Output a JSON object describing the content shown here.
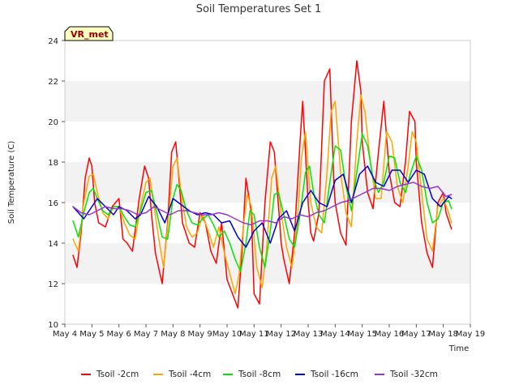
{
  "chart_data": {
    "type": "line",
    "title": "Soil Temperatures Set 1",
    "xlabel": "Time",
    "ylabel": "Soil Temperature (C)",
    "ylim": [
      10,
      24
    ],
    "yticks": [
      10,
      12,
      14,
      16,
      18,
      20,
      22,
      24
    ],
    "xlim": [
      4,
      19
    ],
    "xticks": [
      4,
      5,
      6,
      7,
      8,
      9,
      10,
      11,
      12,
      13,
      14,
      15,
      16,
      17,
      18,
      19
    ],
    "xtick_labels": [
      "May 4",
      "May 5",
      "May 6",
      "May 7",
      "May 8",
      "May 9",
      "May 10",
      "May 11",
      "May 12",
      "May 13",
      "May 14",
      "May 15",
      "May 16",
      "May 17",
      "May 18",
      "May 19"
    ],
    "grid": "horizontal bands",
    "legend_position": "bottom",
    "annotation": "VR_met",
    "series": [
      {
        "name": "Tsoil -2cm",
        "color": "#ff0000",
        "x": [
          4.3,
          4.45,
          4.6,
          4.75,
          4.9,
          5.0,
          5.1,
          5.25,
          5.5,
          5.75,
          6.0,
          6.15,
          6.3,
          6.5,
          6.75,
          6.95,
          7.1,
          7.2,
          7.35,
          7.6,
          7.8,
          7.95,
          8.1,
          8.2,
          8.35,
          8.6,
          8.8,
          9.0,
          9.2,
          9.4,
          9.6,
          9.8,
          10.0,
          10.2,
          10.4,
          10.55,
          10.7,
          10.9,
          11.0,
          11.2,
          11.4,
          11.6,
          11.75,
          11.95,
          12.0,
          12.1,
          12.3,
          12.5,
          12.7,
          12.8,
          13.0,
          13.1,
          13.2,
          13.4,
          13.6,
          13.8,
          13.95,
          14.0,
          14.2,
          14.4,
          14.6,
          14.8,
          14.95,
          15.0,
          15.2,
          15.4,
          15.6,
          15.8,
          16.0,
          16.2,
          16.4,
          16.6,
          16.75,
          16.95,
          17.0,
          17.2,
          17.4,
          17.6,
          17.8,
          18.0,
          18.1,
          18.3
        ],
        "y": [
          13.4,
          12.8,
          14.5,
          17.2,
          18.2,
          17.8,
          16.0,
          15.0,
          14.8,
          15.8,
          16.2,
          14.2,
          14.0,
          13.6,
          16.2,
          17.8,
          17.2,
          15.5,
          13.5,
          12.0,
          15.0,
          18.5,
          19.0,
          17.5,
          15.0,
          14.0,
          13.8,
          15.5,
          15.0,
          13.6,
          13.0,
          15.0,
          12.2,
          11.5,
          10.8,
          13.5,
          17.2,
          15.5,
          11.5,
          11.0,
          16.0,
          19.0,
          18.5,
          15.0,
          14.0,
          13.2,
          12.0,
          14.5,
          19.0,
          21.0,
          16.0,
          14.5,
          14.1,
          15.5,
          22.0,
          22.6,
          17.0,
          16.0,
          14.5,
          13.9,
          20.0,
          23.0,
          21.5,
          19.0,
          16.5,
          15.7,
          18.5,
          21.0,
          17.5,
          16.0,
          15.8,
          18.0,
          20.5,
          20.0,
          18.0,
          15.0,
          13.5,
          12.8,
          16.0,
          16.5,
          15.5,
          14.7
        ]
      },
      {
        "name": "Tsoil -4cm",
        "color": "#ffa500",
        "x": [
          4.3,
          4.5,
          4.7,
          4.9,
          5.05,
          5.2,
          5.4,
          5.6,
          5.8,
          6.0,
          6.2,
          6.4,
          6.6,
          6.8,
          7.0,
          7.15,
          7.3,
          7.5,
          7.65,
          7.8,
          8.0,
          8.15,
          8.3,
          8.5,
          8.7,
          8.9,
          9.1,
          9.3,
          9.5,
          9.7,
          9.9,
          10.1,
          10.3,
          10.45,
          10.6,
          10.75,
          10.9,
          11.1,
          11.3,
          11.45,
          11.65,
          11.8,
          12.0,
          12.2,
          12.4,
          12.6,
          12.75,
          12.9,
          13.1,
          13.3,
          13.5,
          13.7,
          13.85,
          14.0,
          14.2,
          14.4,
          14.6,
          14.8,
          14.95,
          15.1,
          15.3,
          15.5,
          15.7,
          15.9,
          16.1,
          16.3,
          16.5,
          16.7,
          16.85,
          17.0,
          17.2,
          17.4,
          17.6,
          17.8,
          18.0,
          18.2,
          18.3
        ],
        "y": [
          14.2,
          13.6,
          16.0,
          17.3,
          17.4,
          16.5,
          15.5,
          15.2,
          15.8,
          15.8,
          15.0,
          14.4,
          14.2,
          15.8,
          17.0,
          17.2,
          15.8,
          14.0,
          12.8,
          14.8,
          17.8,
          18.2,
          16.5,
          14.8,
          14.3,
          14.5,
          15.4,
          14.6,
          13.8,
          14.8,
          13.5,
          12.5,
          11.5,
          12.5,
          14.8,
          16.4,
          15.8,
          12.8,
          11.8,
          13.5,
          17.2,
          17.8,
          15.5,
          13.8,
          12.8,
          15.0,
          18.2,
          19.5,
          16.0,
          14.8,
          14.5,
          17.5,
          20.5,
          21.0,
          17.5,
          15.5,
          14.8,
          19.0,
          21.3,
          20.5,
          18.0,
          16.2,
          16.2,
          19.5,
          19.0,
          16.8,
          16.0,
          17.8,
          19.5,
          19.0,
          16.5,
          14.2,
          13.6,
          15.8,
          16.2,
          15.5,
          15.0
        ]
      },
      {
        "name": "Tsoil -8cm",
        "color": "#00e600",
        "x": [
          4.3,
          4.5,
          4.7,
          4.9,
          5.05,
          5.2,
          5.4,
          5.6,
          5.8,
          6.0,
          6.2,
          6.4,
          6.6,
          6.8,
          7.0,
          7.2,
          7.4,
          7.6,
          7.8,
          8.0,
          8.15,
          8.3,
          8.5,
          8.7,
          8.9,
          9.1,
          9.3,
          9.5,
          9.7,
          9.9,
          10.1,
          10.3,
          10.5,
          10.7,
          10.85,
          11.0,
          11.2,
          11.4,
          11.6,
          11.75,
          11.9,
          12.1,
          12.3,
          12.5,
          12.7,
          12.9,
          13.05,
          13.2,
          13.4,
          13.6,
          13.8,
          14.0,
          14.2,
          14.4,
          14.6,
          14.8,
          15.0,
          15.2,
          15.4,
          15.6,
          15.8,
          16.0,
          16.2,
          16.4,
          16.6,
          16.8,
          17.0,
          17.2,
          17.4,
          17.6,
          17.8,
          18.0,
          18.2,
          18.3
        ],
        "y": [
          15.1,
          14.3,
          15.5,
          16.5,
          16.7,
          16.2,
          15.6,
          15.4,
          15.8,
          15.8,
          15.3,
          14.9,
          14.8,
          15.6,
          16.5,
          16.6,
          15.5,
          14.3,
          14.2,
          16.2,
          16.9,
          16.6,
          15.6,
          15.0,
          14.9,
          15.2,
          15.4,
          14.9,
          14.3,
          14.6,
          14.0,
          13.2,
          12.6,
          14.0,
          15.6,
          15.4,
          13.8,
          12.8,
          14.6,
          16.4,
          16.5,
          15.4,
          14.2,
          13.8,
          15.4,
          17.5,
          17.8,
          16.5,
          15.4,
          15.0,
          17.0,
          18.8,
          18.6,
          16.8,
          15.6,
          17.5,
          19.4,
          18.8,
          17.2,
          16.5,
          17.0,
          18.3,
          18.2,
          17.0,
          16.5,
          17.5,
          18.3,
          17.6,
          16.0,
          15.0,
          15.2,
          16.0,
          16.1,
          15.7
        ]
      },
      {
        "name": "Tsoil -16cm",
        "color": "#0000cc",
        "x": [
          4.3,
          4.5,
          4.7,
          4.9,
          5.2,
          5.5,
          5.8,
          6.0,
          6.3,
          6.6,
          6.8,
          7.1,
          7.4,
          7.7,
          8.0,
          8.3,
          8.6,
          8.9,
          9.2,
          9.5,
          9.8,
          10.1,
          10.4,
          10.7,
          11.0,
          11.3,
          11.6,
          11.9,
          12.2,
          12.5,
          12.8,
          13.1,
          13.4,
          13.7,
          14.0,
          14.3,
          14.6,
          14.9,
          15.2,
          15.5,
          15.8,
          16.1,
          16.4,
          16.7,
          17.0,
          17.3,
          17.6,
          17.9,
          18.2,
          18.3
        ],
        "y": [
          15.8,
          15.5,
          15.2,
          15.6,
          16.2,
          15.8,
          15.4,
          15.8,
          15.6,
          15.2,
          15.4,
          16.3,
          15.8,
          15.0,
          16.2,
          15.9,
          15.6,
          15.4,
          15.5,
          15.4,
          15.0,
          15.1,
          14.3,
          13.8,
          14.6,
          15.0,
          14.0,
          15.2,
          15.6,
          14.6,
          16.0,
          16.6,
          16.0,
          15.8,
          17.1,
          17.4,
          16.0,
          17.4,
          17.8,
          17.0,
          16.8,
          17.6,
          17.6,
          17.0,
          17.6,
          17.4,
          16.2,
          15.8,
          16.3,
          16.2
        ]
      },
      {
        "name": "Tsoil -32cm",
        "color": "#9933cc",
        "x": [
          4.3,
          4.6,
          4.9,
          5.2,
          5.5,
          5.8,
          6.1,
          6.4,
          6.7,
          7.0,
          7.3,
          7.6,
          7.9,
          8.2,
          8.5,
          8.8,
          9.1,
          9.4,
          9.7,
          10.0,
          10.3,
          10.6,
          10.9,
          11.2,
          11.5,
          11.8,
          12.1,
          12.4,
          12.7,
          13.0,
          13.3,
          13.6,
          13.9,
          14.2,
          14.5,
          14.8,
          15.1,
          15.4,
          15.7,
          16.0,
          16.3,
          16.6,
          16.9,
          17.2,
          17.5,
          17.8,
          18.1,
          18.3
        ],
        "y": [
          15.8,
          15.5,
          15.4,
          15.6,
          15.8,
          15.7,
          15.7,
          15.6,
          15.4,
          15.5,
          15.8,
          15.6,
          15.4,
          15.6,
          15.6,
          15.5,
          15.4,
          15.4,
          15.5,
          15.4,
          15.2,
          15.0,
          14.9,
          15.1,
          15.1,
          15.0,
          15.3,
          15.2,
          15.4,
          15.3,
          15.5,
          15.6,
          15.8,
          16.0,
          16.1,
          16.3,
          16.5,
          16.7,
          16.7,
          16.6,
          16.8,
          16.9,
          17.0,
          16.8,
          16.7,
          16.8,
          16.3,
          16.4
        ]
      }
    ]
  }
}
